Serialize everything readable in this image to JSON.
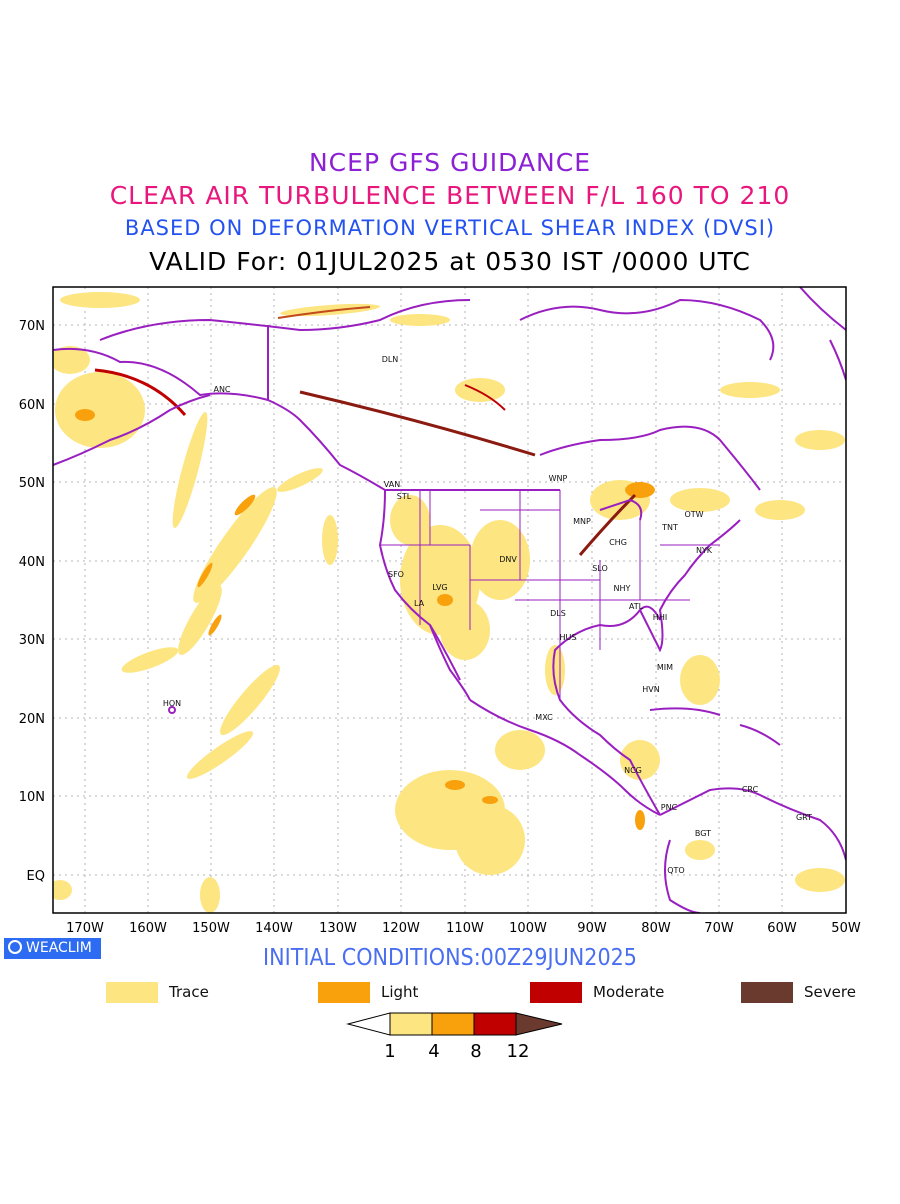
{
  "titles": {
    "line1": "NCEP GFS GUIDANCE",
    "line2": "CLEAR AIR TURBULENCE BETWEEN F/L 160 TO 210",
    "line3": "BASED ON DEFORMATION VERTICAL SHEAR INDEX (DVSI)",
    "line4": "VALID For: 01JUL2025 at 0530 IST /0000 UTC"
  },
  "map": {
    "lat_ticks": [
      "70N",
      "60N",
      "50N",
      "40N",
      "30N",
      "20N",
      "10N",
      "EQ"
    ],
    "lon_ticks": [
      "170W",
      "160W",
      "150W",
      "140W",
      "130W",
      "120W",
      "110W",
      "100W",
      "90W",
      "80W",
      "70W",
      "60W",
      "50W"
    ],
    "stations": [
      "DLN",
      "ANC",
      "VAN",
      "STL",
      "WNP",
      "MNP",
      "TNT",
      "OTW",
      "CHG",
      "NYK",
      "SFO",
      "LVG",
      "DNV",
      "SLO",
      "NHY",
      "LA",
      "DLS",
      "ATL",
      "HHI",
      "HUS",
      "MIM",
      "HVN",
      "HON",
      "MXC",
      "NCG",
      "PNC",
      "CRC",
      "GRT",
      "BGT",
      "QTO"
    ],
    "colors": {
      "trace": "#fde581",
      "light": "#f9a10c",
      "moderate": "#c00000",
      "severe": "#6b3a2e",
      "borders": "#9a1fc0",
      "grid": "#b5b5b5"
    }
  },
  "badge": {
    "label": "WEACLIM"
  },
  "initial": "INITIAL CONDITIONS:00Z29JUN2025",
  "legend": [
    {
      "label": "Trace",
      "color": "#fde581"
    },
    {
      "label": "Light",
      "color": "#f9a10c"
    },
    {
      "label": "Moderate",
      "color": "#c00000"
    },
    {
      "label": "Severe",
      "color": "#6b3a2e"
    }
  ],
  "colorbar": {
    "ticks": [
      "1",
      "4",
      "8",
      "12"
    ]
  }
}
